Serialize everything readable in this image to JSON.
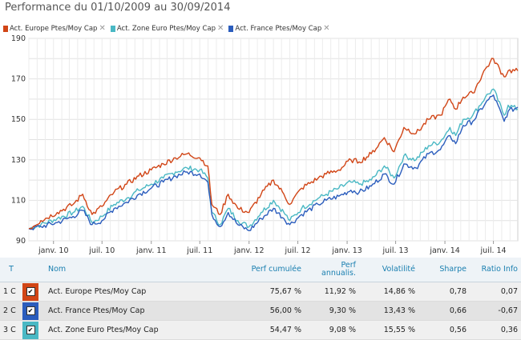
{
  "title": "Performance du 01/10/2009 au 30/09/2014",
  "legend": [
    {
      "label": "Act. Europe Ptes/Moy Cap",
      "color": "#d14516"
    },
    {
      "label": "Act. Zone Euro Ptes/Moy Cap",
      "color": "#4ab8c4"
    },
    {
      "label": "Act. France Ptes/Moy Cap",
      "color": "#2b5dbd"
    }
  ],
  "close_glyph": "✕",
  "chart_data": {
    "type": "line",
    "x_tick_labels": [
      "janv. 10",
      "juil. 10",
      "janv. 11",
      "juil. 11",
      "janv. 12",
      "juil. 12",
      "janv. 13",
      "juil. 13",
      "janv. 14",
      "juil. 14"
    ],
    "x_range": [
      "2009-10-01",
      "2014-09-30"
    ],
    "ylim": [
      90,
      190
    ],
    "y_ticks": [
      90,
      110,
      130,
      150,
      170,
      190
    ],
    "grid": true,
    "series": [
      {
        "name": "Act. Europe Ptes/Moy Cap",
        "color": "#d14516",
        "x": [
          "2009-10-01",
          "2009-11-15",
          "2010-01-15",
          "2010-03-15",
          "2010-04-20",
          "2010-05-25",
          "2010-07-01",
          "2010-08-15",
          "2010-10-01",
          "2010-11-15",
          "2011-01-01",
          "2011-02-15",
          "2011-04-01",
          "2011-05-15",
          "2011-07-01",
          "2011-07-31",
          "2011-08-15",
          "2011-09-15",
          "2011-10-15",
          "2011-11-20",
          "2012-01-01",
          "2012-02-15",
          "2012-04-01",
          "2012-05-10",
          "2012-06-01",
          "2012-07-15",
          "2012-09-15",
          "2012-10-15",
          "2012-12-01",
          "2013-01-15",
          "2013-02-15",
          "2013-04-01",
          "2013-05-20",
          "2013-06-25",
          "2013-08-01",
          "2013-09-15",
          "2013-11-01",
          "2013-12-15",
          "2014-01-20",
          "2014-02-10",
          "2014-03-10",
          "2014-04-15",
          "2014-06-01",
          "2014-07-01",
          "2014-08-10",
          "2014-08-25",
          "2014-09-30"
        ],
        "values": [
          96,
          100,
          104,
          108,
          113,
          103,
          107,
          114,
          118,
          122,
          125,
          128,
          131,
          133,
          131,
          127,
          108,
          103,
          113,
          106,
          104,
          113,
          120,
          113,
          108,
          116,
          121,
          123,
          125,
          130,
          129,
          133,
          141,
          134,
          146,
          143,
          150,
          152,
          160,
          155,
          161,
          163,
          175,
          180,
          171,
          174,
          174
        ]
      },
      {
        "name": "Act. Zone Euro Ptes/Moy Cap",
        "color": "#4ab8c4",
        "x": [
          "2009-10-01",
          "2009-11-15",
          "2010-01-15",
          "2010-03-15",
          "2010-04-20",
          "2010-05-25",
          "2010-07-01",
          "2010-08-15",
          "2010-10-01",
          "2010-11-15",
          "2011-01-01",
          "2011-02-15",
          "2011-04-01",
          "2011-05-15",
          "2011-07-01",
          "2011-07-31",
          "2011-08-15",
          "2011-09-15",
          "2011-10-15",
          "2011-11-20",
          "2012-01-01",
          "2012-02-15",
          "2012-04-01",
          "2012-05-10",
          "2012-06-01",
          "2012-07-15",
          "2012-09-15",
          "2012-10-15",
          "2012-12-01",
          "2013-01-15",
          "2013-02-15",
          "2013-04-01",
          "2013-05-20",
          "2013-06-25",
          "2013-08-01",
          "2013-09-15",
          "2013-11-01",
          "2013-12-15",
          "2014-01-20",
          "2014-02-10",
          "2014-03-10",
          "2014-04-15",
          "2014-06-01",
          "2014-07-01",
          "2014-08-10",
          "2014-08-25",
          "2014-09-30"
        ],
        "values": [
          96,
          98,
          101,
          104,
          107,
          99,
          102,
          108,
          111,
          115,
          118,
          121,
          124,
          126,
          125,
          121,
          104,
          98,
          106,
          100,
          97,
          104,
          110,
          104,
          100,
          106,
          111,
          113,
          116,
          119,
          118,
          120,
          127,
          121,
          132,
          130,
          137,
          139,
          146,
          142,
          150,
          152,
          161,
          165,
          152,
          157,
          155
        ]
      },
      {
        "name": "Act. France Ptes/Moy Cap",
        "color": "#2b5dbd",
        "x": [
          "2009-10-01",
          "2009-11-15",
          "2010-01-15",
          "2010-03-15",
          "2010-04-20",
          "2010-05-25",
          "2010-07-01",
          "2010-08-15",
          "2010-10-01",
          "2010-11-15",
          "2011-01-01",
          "2011-02-15",
          "2011-04-01",
          "2011-05-15",
          "2011-07-01",
          "2011-07-31",
          "2011-08-15",
          "2011-09-15",
          "2011-10-15",
          "2011-11-20",
          "2012-01-01",
          "2012-02-15",
          "2012-04-01",
          "2012-05-10",
          "2012-06-01",
          "2012-07-15",
          "2012-09-15",
          "2012-10-15",
          "2012-12-01",
          "2013-01-15",
          "2013-02-15",
          "2013-04-01",
          "2013-05-20",
          "2013-06-25",
          "2013-08-01",
          "2013-09-15",
          "2013-11-01",
          "2013-12-15",
          "2014-01-20",
          "2014-02-10",
          "2014-03-10",
          "2014-04-15",
          "2014-06-01",
          "2014-07-01",
          "2014-08-10",
          "2014-08-25",
          "2014-09-30"
        ],
        "values": [
          96,
          97,
          99,
          102,
          105,
          98,
          100,
          106,
          109,
          113,
          116,
          119,
          122,
          124,
          123,
          119,
          103,
          97,
          104,
          98,
          95,
          101,
          106,
          101,
          98,
          103,
          108,
          110,
          112,
          115,
          114,
          117,
          123,
          118,
          128,
          126,
          133,
          135,
          142,
          138,
          147,
          149,
          158,
          162,
          149,
          154,
          156
        ]
      }
    ]
  },
  "table": {
    "headers": {
      "t": "T",
      "name": "Nom",
      "perf_cum": "Perf cumulée",
      "perf_ann_line1": "Perf",
      "perf_ann_line2": "annualis.",
      "vol": "Volatilité",
      "sharpe": "Sharpe",
      "ratio": "Ratio Info"
    },
    "check_glyph": "✔",
    "rows": [
      {
        "index": "1",
        "type": "C",
        "color": "#d14516",
        "name": "Act. Europe Ptes/Moy Cap",
        "perf_cum": "75,67 %",
        "perf_ann": "11,92 %",
        "vol": "14,86 %",
        "sharpe": "0,78",
        "ratio": "0,07"
      },
      {
        "index": "2",
        "type": "C",
        "color": "#2b5dbd",
        "name": "Act. France Ptes/Moy Cap",
        "perf_cum": "56,00 %",
        "perf_ann": "9,30 %",
        "vol": "13,43 %",
        "sharpe": "0,66",
        "ratio": "-0,67"
      },
      {
        "index": "3",
        "type": "C",
        "color": "#4ab8c4",
        "name": "Act. Zone Euro Ptes/Moy Cap",
        "perf_cum": "54,47 %",
        "perf_ann": "9,08 %",
        "vol": "15,55 %",
        "sharpe": "0,56",
        "ratio": "0,36"
      }
    ]
  }
}
